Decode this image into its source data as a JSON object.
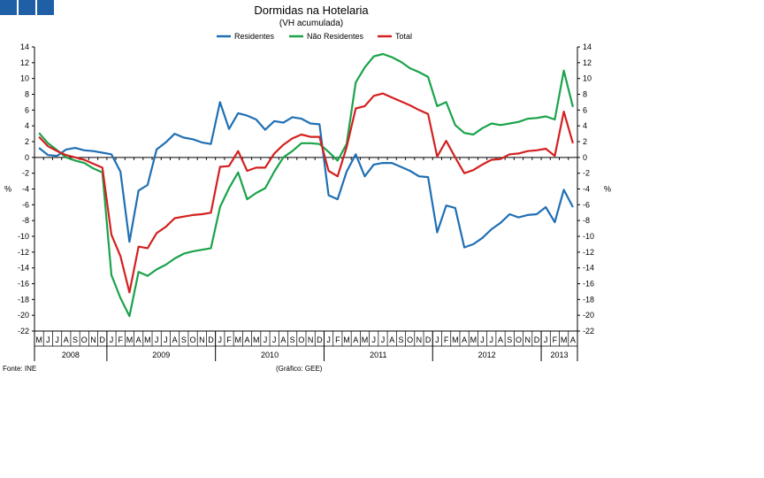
{
  "header": {
    "title": "Dormidas na Hotelaria",
    "subtitle": "(VH acumulada)"
  },
  "footer": {
    "source": "Fonte: INE",
    "credit": "(Gráfico: GEE)"
  },
  "colors": {
    "logo": "#1f5fa6",
    "residentes": "#1f6fb4",
    "nao_residentes": "#1aa34a",
    "total": "#d42020"
  },
  "chart_data": {
    "type": "line",
    "title": "Dormidas na Hotelaria",
    "subtitle": "(VH acumulada)",
    "ylabel_left": "%",
    "ylabel_right": "%",
    "ylim": [
      -22,
      14
    ],
    "yticks": [
      14,
      12,
      10,
      8,
      6,
      4,
      2,
      0,
      -2,
      -4,
      -6,
      -8,
      -10,
      -12,
      -14,
      -16,
      -18,
      -20,
      -22
    ],
    "grid": false,
    "legend": "top-center",
    "x": [
      "M",
      "J",
      "J",
      "A",
      "S",
      "O",
      "N",
      "D",
      "J",
      "F",
      "M",
      "A",
      "M",
      "J",
      "J",
      "A",
      "S",
      "O",
      "N",
      "D",
      "J",
      "F",
      "M",
      "A",
      "M",
      "J",
      "J",
      "A",
      "S",
      "O",
      "N",
      "D",
      "J",
      "F",
      "M",
      "A",
      "M",
      "J",
      "J",
      "A",
      "S",
      "O",
      "N",
      "D",
      "J",
      "F",
      "M",
      "A",
      "M",
      "J",
      "J",
      "A",
      "S",
      "O",
      "N",
      "D",
      "J",
      "F",
      "M",
      "A"
    ],
    "years": [
      {
        "label": "2008",
        "start": 0,
        "end": 7
      },
      {
        "label": "2009",
        "start": 8,
        "end": 19
      },
      {
        "label": "2010",
        "start": 20,
        "end": 31
      },
      {
        "label": "2011",
        "start": 32,
        "end": 43
      },
      {
        "label": "2012",
        "start": 44,
        "end": 55
      },
      {
        "label": "2013",
        "start": 56,
        "end": 59
      }
    ],
    "series": [
      {
        "name": "Residentes",
        "values": [
          1.2,
          0.3,
          0.2,
          1.0,
          1.2,
          0.9,
          0.8,
          0.6,
          0.4,
          -1.8,
          -10.7,
          -4.2,
          -3.5,
          1.0,
          1.9,
          3.0,
          2.5,
          2.3,
          1.9,
          1.7,
          7.0,
          3.6,
          5.6,
          5.3,
          4.8,
          3.5,
          4.6,
          4.4,
          5.1,
          4.9,
          4.3,
          4.2,
          -4.8,
          -5.3,
          -1.8,
          0.4,
          -2.4,
          -0.9,
          -0.7,
          -0.7,
          -1.2,
          -1.7,
          -2.4,
          -2.5,
          -9.5,
          -6.1,
          -6.4,
          -11.4,
          -11.0,
          -10.2,
          -9.1,
          -8.3,
          -7.2,
          -7.6,
          -7.3,
          -7.2,
          -6.3,
          -8.2,
          -4.1,
          -6.3
        ]
      },
      {
        "name": "Não Residentes",
        "values": [
          3.1,
          1.8,
          0.9,
          0.0,
          -0.4,
          -0.7,
          -1.4,
          -1.9,
          -14.9,
          -17.8,
          -20.1,
          -14.5,
          -15.0,
          -14.2,
          -13.6,
          -12.8,
          -12.2,
          -11.9,
          -11.7,
          -11.5,
          -6.3,
          -3.9,
          -1.9,
          -5.3,
          -4.5,
          -3.9,
          -1.8,
          0.0,
          0.8,
          1.8,
          1.8,
          1.7,
          0.7,
          -0.4,
          1.7,
          9.5,
          11.4,
          12.8,
          13.1,
          12.7,
          12.1,
          11.3,
          10.8,
          10.2,
          6.5,
          7.0,
          4.1,
          3.1,
          2.9,
          3.7,
          4.3,
          4.1,
          4.3,
          4.5,
          4.9,
          5.0,
          5.2,
          4.8,
          11.0,
          6.4
        ]
      },
      {
        "name": "Total",
        "values": [
          2.6,
          1.4,
          0.8,
          0.3,
          0.0,
          -0.3,
          -0.8,
          -1.3,
          -9.8,
          -12.5,
          -17.1,
          -11.3,
          -11.5,
          -9.6,
          -8.8,
          -7.7,
          -7.5,
          -7.3,
          -7.2,
          -7.0,
          -1.2,
          -1.1,
          0.8,
          -1.7,
          -1.3,
          -1.3,
          0.5,
          1.6,
          2.4,
          2.9,
          2.6,
          2.6,
          -1.7,
          -2.4,
          1.3,
          6.2,
          6.5,
          7.8,
          8.1,
          7.6,
          7.1,
          6.6,
          6.0,
          5.5,
          0.1,
          2.1,
          0.0,
          -2.0,
          -1.6,
          -0.9,
          -0.3,
          -0.2,
          0.4,
          0.5,
          0.8,
          0.9,
          1.1,
          0.2,
          5.8,
          1.8
        ]
      }
    ]
  }
}
